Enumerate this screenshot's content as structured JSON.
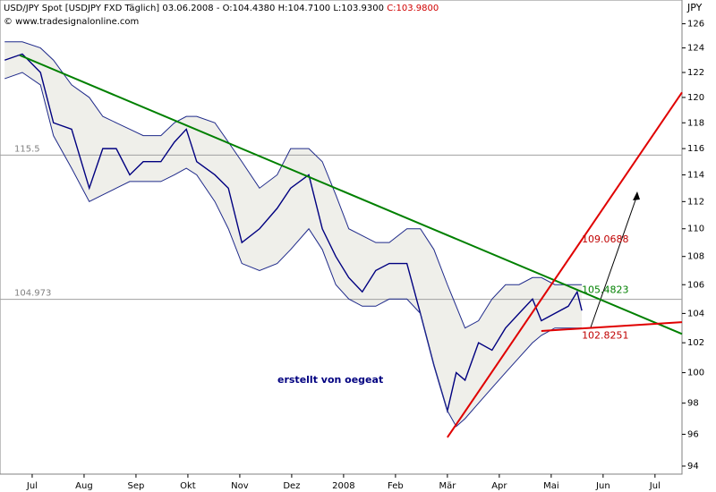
{
  "chart_data": {
    "type": "line",
    "title": "USD/JPY Spot [USDJPY FXD  Täglich] 03.06.2008 - O:104.4380 H:104.7100 L:103.9300",
    "close_label": "C:103.9800",
    "subtitle": "© www.tradesignalonline.com",
    "y_unit": "JPY",
    "watermark": "erstellt von oegeat",
    "log_y": true,
    "xlim": [
      -0.62,
      12.52
    ],
    "ylim": [
      93.5,
      128
    ],
    "xticks": [
      {
        "value": 0,
        "label": "Jul"
      },
      {
        "value": 1,
        "label": "Aug"
      },
      {
        "value": 2,
        "label": "Sep"
      },
      {
        "value": 3,
        "label": "Okt"
      },
      {
        "value": 4,
        "label": "Nov"
      },
      {
        "value": 5,
        "label": "Dez"
      },
      {
        "value": 6,
        "label": "2008"
      },
      {
        "value": 7,
        "label": "Feb"
      },
      {
        "value": 8,
        "label": "Mär"
      },
      {
        "value": 9,
        "label": "Apr"
      },
      {
        "value": 10,
        "label": "Mai"
      },
      {
        "value": 11,
        "label": "Jun"
      },
      {
        "value": 12,
        "label": "Jul"
      }
    ],
    "yticks": [
      94,
      96,
      98,
      100,
      102,
      104,
      106,
      108,
      110,
      112,
      114,
      116,
      118,
      120,
      122,
      124,
      126
    ],
    "x": [
      -0.53,
      -0.19,
      0.16,
      0.41,
      0.76,
      1.1,
      1.36,
      1.62,
      1.88,
      2.14,
      2.48,
      2.74,
      2.97,
      3.17,
      3.52,
      3.78,
      4.04,
      4.38,
      4.72,
      4.98,
      5.33,
      5.59,
      5.85,
      6.1,
      6.36,
      6.62,
      6.88,
      7.22,
      7.48,
      7.74,
      8.0,
      8.17,
      8.34,
      8.6,
      8.86,
      9.12,
      9.38,
      9.64,
      9.81,
      10.07,
      10.33,
      10.5,
      10.59
    ],
    "series": [
      {
        "name": "Price",
        "color": "#000080",
        "values": [
          123,
          123.5,
          122,
          118,
          117.5,
          113,
          116,
          116,
          114,
          115,
          115,
          116.5,
          117.5,
          115,
          114,
          113,
          109,
          110,
          111.5,
          113,
          114,
          110,
          108,
          106.5,
          105.5,
          107,
          107.5,
          107.5,
          104,
          100.5,
          97.5,
          100,
          99.5,
          102,
          101.5,
          103,
          104,
          105,
          103.5,
          104,
          104.5,
          105.5,
          104.2
        ]
      },
      {
        "name": "Upper Band",
        "color": "#1f2a8a",
        "values": [
          124.5,
          124.5,
          124,
          123,
          121,
          120,
          118.5,
          118,
          117.5,
          117,
          117,
          118,
          118.5,
          118.5,
          118,
          116.5,
          115,
          113,
          114,
          116,
          116,
          115,
          112.5,
          110,
          109.5,
          109,
          109,
          110,
          110,
          108.5,
          106,
          104.5,
          103,
          103.5,
          105,
          106,
          106,
          106.5,
          106.5,
          106,
          106,
          106,
          106
        ]
      },
      {
        "name": "Lower Band",
        "color": "#1f2a8a",
        "values": [
          121.5,
          122,
          121,
          117,
          114.5,
          112,
          112.5,
          113,
          113.5,
          113.5,
          113.5,
          114,
          114.5,
          114,
          112,
          110,
          107.5,
          107,
          107.5,
          108.5,
          110,
          108.5,
          106,
          105,
          104.5,
          104.5,
          105,
          105,
          104,
          100.5,
          97.5,
          96.5,
          97,
          98,
          99,
          100,
          101,
          102,
          102.5,
          103,
          103,
          103,
          103
        ]
      }
    ],
    "trendlines": [
      {
        "color": "#008000",
        "x": [
          -0.24,
          12.52
        ],
        "values": [
          123.4,
          102.6
        ]
      },
      {
        "color": "#e00000",
        "x": [
          8.0,
          12.52
        ],
        "values": [
          95.8,
          120.4
        ]
      },
      {
        "color": "#e00000",
        "x": [
          9.81,
          12.52
        ],
        "values": [
          102.8,
          103.4
        ]
      }
    ],
    "hlines": [
      115.5,
      104.973
    ],
    "annotations": [
      {
        "x": 10.59,
        "y": 109.0688,
        "color": "#c00000"
      },
      {
        "x": 10.59,
        "y": 105.4823,
        "color": "#008000"
      },
      {
        "x": 10.59,
        "y": 102.8251,
        "color": "#c00000"
      }
    ]
  }
}
